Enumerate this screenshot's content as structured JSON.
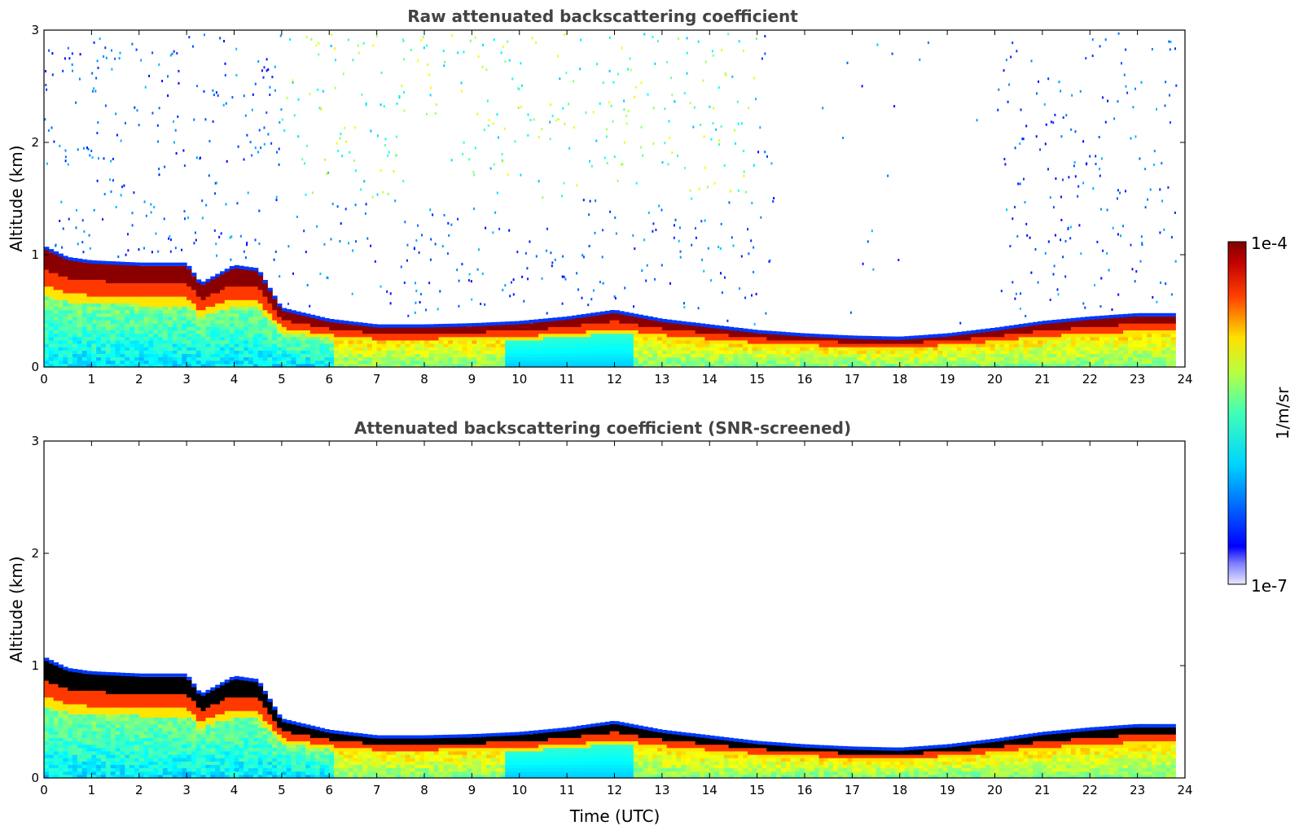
{
  "chart_data": [
    {
      "type": "heatmap",
      "title": "Raw attenuated backscattering coefficient",
      "xlabel": "",
      "ylabel": "Altitude (km)",
      "xlim": [
        0,
        24
      ],
      "ylim": [
        0,
        3
      ],
      "xticks": [
        "0",
        "1",
        "2",
        "3",
        "4",
        "5",
        "6",
        "7",
        "8",
        "9",
        "10",
        "11",
        "12",
        "13",
        "14",
        "15",
        "16",
        "17",
        "18",
        "19",
        "20",
        "21",
        "22",
        "23",
        "24"
      ],
      "yticks": [
        "0",
        "1",
        "2",
        "3"
      ],
      "data_end_hour": 23.8,
      "screened": false,
      "layer_top_km": {
        "hours": [
          0,
          0.5,
          1,
          2,
          3,
          3.3,
          4,
          4.5,
          5,
          6,
          7,
          8,
          9,
          10,
          11,
          12,
          13,
          14,
          15,
          16,
          17,
          18,
          19,
          20,
          21,
          22,
          23,
          23.8
        ],
        "values": [
          1.05,
          0.95,
          0.92,
          0.9,
          0.9,
          0.72,
          0.88,
          0.85,
          0.5,
          0.4,
          0.35,
          0.35,
          0.36,
          0.38,
          0.42,
          0.48,
          0.4,
          0.35,
          0.3,
          0.27,
          0.25,
          0.24,
          0.27,
          0.32,
          0.38,
          0.42,
          0.45,
          0.45
        ]
      },
      "noise_upper_levels": "high in hours 0-15 and 20-24, clear between 15-20"
    },
    {
      "type": "heatmap",
      "title": "Attenuated backscattering coefficient (SNR-screened)",
      "xlabel": "Time (UTC)",
      "ylabel": "Altitude (km)",
      "xlim": [
        0,
        24
      ],
      "ylim": [
        0,
        3
      ],
      "xticks": [
        "0",
        "1",
        "2",
        "3",
        "4",
        "5",
        "6",
        "7",
        "8",
        "9",
        "10",
        "11",
        "12",
        "13",
        "14",
        "15",
        "16",
        "17",
        "18",
        "19",
        "20",
        "21",
        "22",
        "23",
        "24"
      ],
      "yticks": [
        "0",
        "1",
        "2",
        "3"
      ],
      "data_end_hour": 23.8,
      "screened": true
    }
  ],
  "colorbar": {
    "label": "1/m/sr",
    "max_label": "1e-4",
    "min_label": "1e-7",
    "colormap": "jet",
    "scale": "log"
  },
  "colors": {
    "title": "#444444",
    "saturated": "#7f0000",
    "clipped_screened": "#000000"
  }
}
